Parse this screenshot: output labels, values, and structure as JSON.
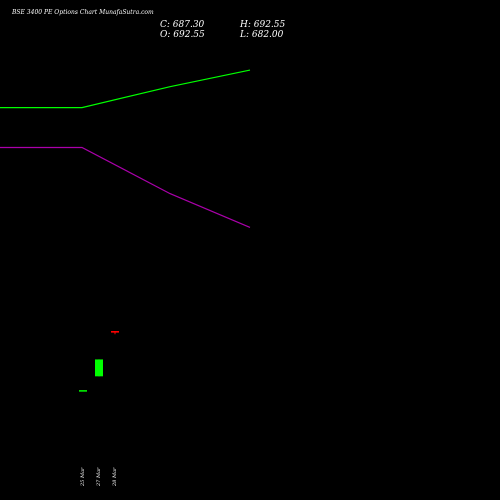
{
  "header": {
    "title": "BSE 3400  PE Options  Chart MunafaSutra.com"
  },
  "ohlc": {
    "close": "C: 687.30",
    "open": "O: 692.55",
    "high": "H: 692.55",
    "low": "L: 682.00"
  },
  "chart_data": {
    "type": "candlestick",
    "categories": [
      "25 Mar",
      "27 Mar",
      "28 Mar"
    ],
    "candles": [
      {
        "date": "25 Mar",
        "open": 500,
        "close": 500,
        "high": 500,
        "low": 500,
        "color": "#00ff00"
      },
      {
        "date": "27 Mar",
        "open": 545,
        "close": 600,
        "high": 600,
        "low": 545,
        "color": "#00ff00"
      },
      {
        "date": "28 Mar",
        "open": 692.55,
        "close": 687.3,
        "high": 692.55,
        "low": 682,
        "color": "#ff0000"
      }
    ],
    "series": [
      {
        "color": "#00ff00",
        "x": [
          0,
          82,
          170,
          250
        ],
        "y": [
          1420,
          1420,
          1488,
          1542
        ]
      },
      {
        "color": "#aa00aa",
        "x": [
          0,
          82,
          170,
          250
        ],
        "y": [
          1290,
          1290,
          1140,
          1030
        ]
      }
    ],
    "ylim": [
      240,
      1640
    ],
    "grid": false,
    "colors": {
      "background": "#000000",
      "up": "#00ff00",
      "down": "#ff0000",
      "text": "#ffffff"
    }
  }
}
